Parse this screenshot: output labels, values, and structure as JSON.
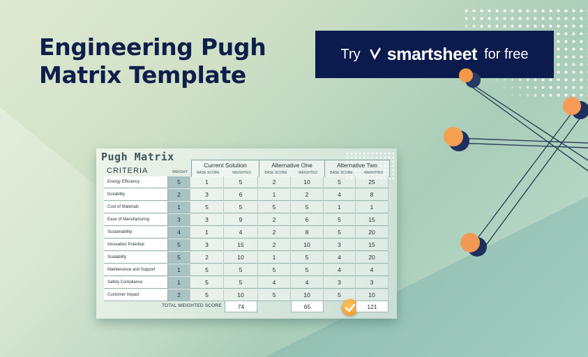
{
  "headline": {
    "line1": "Engineering Pugh",
    "line2": "Matrix Template"
  },
  "cta": {
    "try": "Try",
    "brand": "smartsheet",
    "suffix": "for free",
    "bg": "#0b1b4d"
  },
  "matrix": {
    "title": "Pugh Matrix",
    "criteria_header": "CRITERIA",
    "weight_header": "WEIGHT",
    "alternatives": [
      "Current Solution",
      "Alternative One",
      "Alternative Two"
    ],
    "sub_headers": {
      "base": "BASE SCORE",
      "weighted": "WEIGHTED"
    },
    "rows": [
      {
        "criterion": "Energy Efficiency",
        "weight": "5",
        "cs_base": "1",
        "cs_w": "5",
        "a1_base": "2",
        "a1_w": "10",
        "a2_base": "5",
        "a2_w": "25"
      },
      {
        "criterion": "Durability",
        "weight": "2",
        "cs_base": "3",
        "cs_w": "6",
        "a1_base": "1",
        "a1_w": "2",
        "a2_base": "4",
        "a2_w": "8"
      },
      {
        "criterion": "Cost of Materials",
        "weight": "1",
        "cs_base": "5",
        "cs_w": "5",
        "a1_base": "5",
        "a1_w": "5",
        "a2_base": "1",
        "a2_w": "1"
      },
      {
        "criterion": "Ease of Manufacturing",
        "weight": "3",
        "cs_base": "3",
        "cs_w": "9",
        "a1_base": "2",
        "a1_w": "6",
        "a2_base": "5",
        "a2_w": "15"
      },
      {
        "criterion": "Sustainability",
        "weight": "4",
        "cs_base": "1",
        "cs_w": "4",
        "a1_base": "2",
        "a1_w": "8",
        "a2_base": "5",
        "a2_w": "20"
      },
      {
        "criterion": "Innovation Potential",
        "weight": "5",
        "cs_base": "3",
        "cs_w": "15",
        "a1_base": "2",
        "a1_w": "10",
        "a2_base": "3",
        "a2_w": "15"
      },
      {
        "criterion": "Scalability",
        "weight": "5",
        "cs_base": "2",
        "cs_w": "10",
        "a1_base": "1",
        "a1_w": "5",
        "a2_base": "4",
        "a2_w": "20"
      },
      {
        "criterion": "Maintenance and Support",
        "weight": "1",
        "cs_base": "5",
        "cs_w": "5",
        "a1_base": "5",
        "a1_w": "5",
        "a2_base": "4",
        "a2_w": "4"
      },
      {
        "criterion": "Safety Compliance",
        "weight": "1",
        "cs_base": "5",
        "cs_w": "5",
        "a1_base": "4",
        "a1_w": "4",
        "a2_base": "3",
        "a2_w": "3"
      },
      {
        "criterion": "Customer Impact",
        "weight": "2",
        "cs_base": "5",
        "cs_w": "10",
        "a1_base": "5",
        "a1_w": "10",
        "a2_base": "5",
        "a2_w": "10"
      }
    ],
    "total_label": "TOTAL WEIGHTED SCORE",
    "totals": [
      "74",
      "65",
      "121"
    ]
  }
}
